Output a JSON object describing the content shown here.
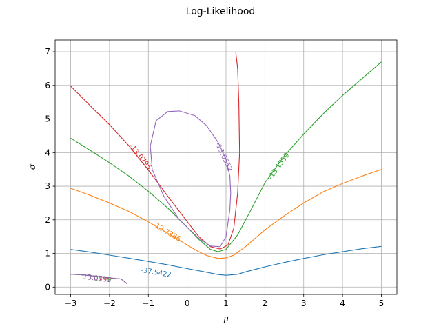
{
  "chart_data": {
    "type": "line",
    "title": "Log-Likelihood",
    "xlabel": "μ",
    "ylabel": "σ",
    "xlim": [
      -3.4,
      5.4
    ],
    "ylim": [
      -0.22,
      7.35
    ],
    "xticks": [
      -3,
      -2,
      -1,
      0,
      1,
      2,
      3,
      4,
      5
    ],
    "yticks": [
      0,
      1,
      2,
      3,
      4,
      5,
      6,
      7
    ],
    "grid": true,
    "contours": [
      {
        "level": "-37.5422",
        "color": "#1f77b4",
        "points": [
          [
            -3,
            1.12
          ],
          [
            -2.5,
            1.04
          ],
          [
            -2,
            0.95
          ],
          [
            -1.5,
            0.86
          ],
          [
            -1,
            0.76
          ],
          [
            -0.5,
            0.66
          ],
          [
            0,
            0.55
          ],
          [
            0.5,
            0.44
          ],
          [
            0.8,
            0.37
          ],
          [
            1,
            0.35
          ],
          [
            1.3,
            0.38
          ],
          [
            1.5,
            0.45
          ],
          [
            2,
            0.6
          ],
          [
            2.5,
            0.73
          ],
          [
            3,
            0.85
          ],
          [
            3.5,
            0.96
          ],
          [
            4,
            1.05
          ],
          [
            4.5,
            1.14
          ],
          [
            5,
            1.21
          ]
        ],
        "label_at": [
          -0.8,
          0.44
        ]
      },
      {
        "level": "-13.7386",
        "color": "#ff7f0e",
        "points": [
          [
            -3,
            2.94
          ],
          [
            -2.5,
            2.73
          ],
          [
            -2,
            2.5
          ],
          [
            -1.5,
            2.25
          ],
          [
            -1,
            1.94
          ],
          [
            -0.5,
            1.6
          ],
          [
            0,
            1.25
          ],
          [
            0.3,
            1.05
          ],
          [
            0.5,
            0.94
          ],
          [
            0.8,
            0.85
          ],
          [
            1,
            0.87
          ],
          [
            1.2,
            0.95
          ],
          [
            1.5,
            1.2
          ],
          [
            2,
            1.7
          ],
          [
            2.5,
            2.12
          ],
          [
            3,
            2.5
          ],
          [
            3.5,
            2.83
          ],
          [
            4,
            3.08
          ],
          [
            4.5,
            3.3
          ],
          [
            5,
            3.5
          ]
        ],
        "label_at": [
          -0.52,
          1.65
        ]
      },
      {
        "level": "-13.1559",
        "color": "#2ca02c",
        "points": [
          [
            -3,
            4.43
          ],
          [
            -2.5,
            4.07
          ],
          [
            -2,
            3.7
          ],
          [
            -1.5,
            3.3
          ],
          [
            -1,
            2.85
          ],
          [
            -0.5,
            2.35
          ],
          [
            0,
            1.78
          ],
          [
            0.3,
            1.42
          ],
          [
            0.6,
            1.12
          ],
          [
            0.8,
            1.05
          ],
          [
            1,
            1.12
          ],
          [
            1.3,
            1.55
          ],
          [
            1.6,
            2.2
          ],
          [
            2,
            3.1
          ],
          [
            2.5,
            3.9
          ],
          [
            3,
            4.55
          ],
          [
            3.5,
            5.15
          ],
          [
            4,
            5.7
          ],
          [
            4.5,
            6.2
          ],
          [
            5,
            6.7
          ]
        ],
        "label_at": [
          2.35,
          3.6
        ]
      },
      {
        "level": "-13.0795",
        "color": "#d62728",
        "points": [
          [
            -3,
            5.98
          ],
          [
            -2.5,
            5.4
          ],
          [
            -2,
            4.83
          ],
          [
            -1.5,
            4.2
          ],
          [
            -1,
            3.48
          ],
          [
            -0.5,
            2.7
          ],
          [
            0,
            1.95
          ],
          [
            0.3,
            1.5
          ],
          [
            0.6,
            1.2
          ],
          [
            0.85,
            1.13
          ],
          [
            1.05,
            1.25
          ],
          [
            1.2,
            1.75
          ],
          [
            1.3,
            2.8
          ],
          [
            1.35,
            4.0
          ],
          [
            1.33,
            5.5
          ],
          [
            1.3,
            6.5
          ],
          [
            1.25,
            7.0
          ]
        ],
        "label_at": [
          -1.2,
          3.88
        ]
      },
      {
        "level": "-13.0552",
        "color": "#9467bd",
        "points": [
          [
            0.85,
            1.2
          ],
          [
            1.0,
            1.5
          ],
          [
            1.1,
            2.3
          ],
          [
            1.12,
            2.8
          ],
          [
            1.1,
            3.3
          ],
          [
            1.0,
            3.8
          ],
          [
            0.8,
            4.3
          ],
          [
            0.5,
            4.8
          ],
          [
            0.2,
            5.1
          ],
          [
            -0.2,
            5.24
          ],
          [
            -0.5,
            5.22
          ],
          [
            -0.8,
            4.95
          ],
          [
            -0.95,
            4.2
          ],
          [
            -0.9,
            3.5
          ],
          [
            -0.6,
            2.7
          ],
          [
            -0.2,
            2.0
          ],
          [
            0.3,
            1.45
          ],
          [
            0.6,
            1.22
          ],
          [
            0.85,
            1.2
          ]
        ],
        "label_at": [
          0.95,
          3.88
        ]
      },
      {
        "level": "-13.0795",
        "color": "#d62728",
        "points": [
          [
            -3,
            0.38
          ],
          [
            -2.8,
            0.37
          ],
          [
            -2.5,
            0.34
          ],
          [
            -2.2,
            0.3
          ],
          [
            -1.9,
            0.26
          ],
          [
            -1.7,
            0.24
          ],
          [
            -1.55,
            0.1
          ]
        ],
        "label_at": [
          -2.35,
          0.27
        ]
      },
      {
        "level": "-13.1559",
        "color": "#2ca02c",
        "points": [
          [
            -3,
            0.38
          ],
          [
            -2.8,
            0.37
          ],
          [
            -2.5,
            0.34
          ],
          [
            -2.2,
            0.3
          ],
          [
            -1.9,
            0.26
          ],
          [
            -1.7,
            0.24
          ],
          [
            -1.55,
            0.1
          ]
        ],
        "label_at": [
          -2.35,
          0.27
        ]
      },
      {
        "level": "-13.0552",
        "color": "#9467bd",
        "points": [
          [
            -3,
            0.38
          ],
          [
            -2.8,
            0.37
          ],
          [
            -2.5,
            0.34
          ],
          [
            -2.2,
            0.3
          ],
          [
            -1.9,
            0.26
          ],
          [
            -1.7,
            0.24
          ],
          [
            -1.55,
            0.1
          ]
        ],
        "label_at": [
          -2.35,
          0.27
        ]
      }
    ]
  }
}
